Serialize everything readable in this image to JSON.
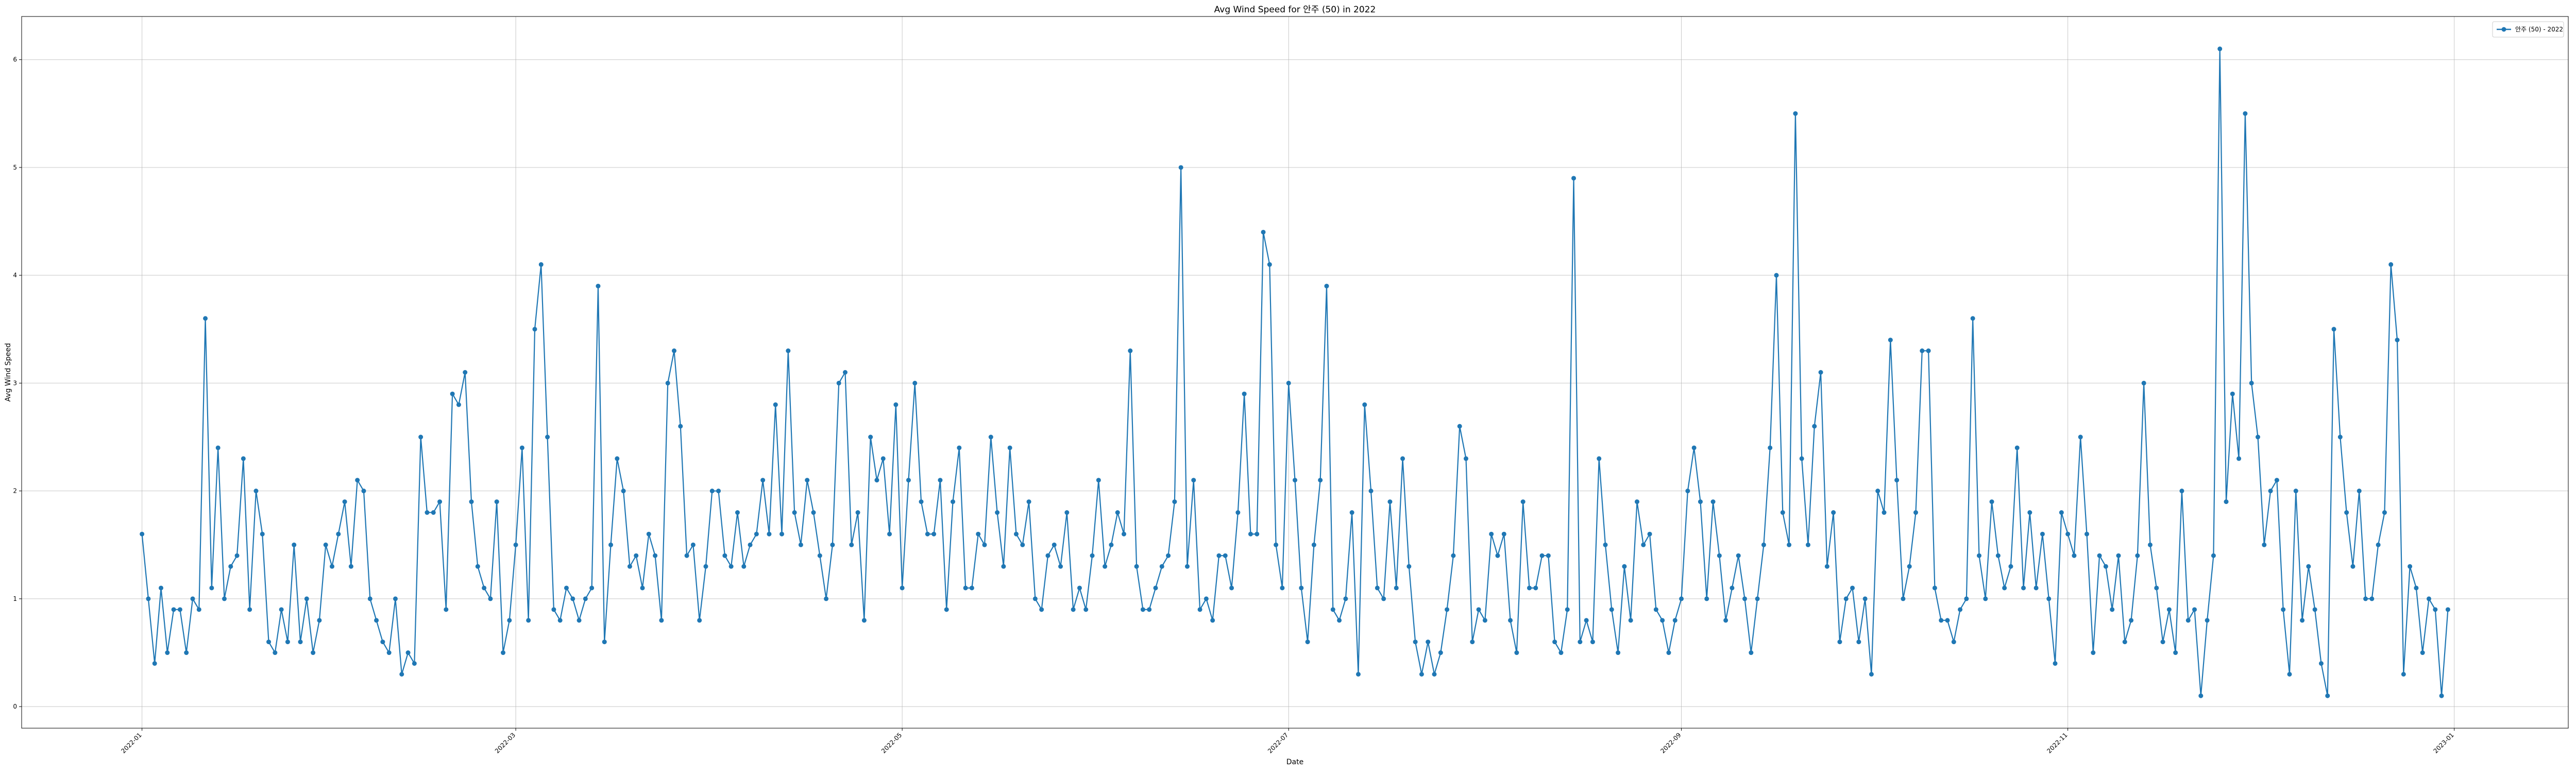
{
  "chart_data": {
    "type": "line",
    "title": "Avg Wind Speed for 안주 (50) in 2022",
    "xlabel": "Date",
    "ylabel": "Avg Wind Speed",
    "xlim": [
      "2021-12-13",
      "2023-01-19"
    ],
    "ylim": [
      -0.2,
      6.4
    ],
    "y_ticks": [
      0,
      1,
      2,
      3,
      4,
      5,
      6
    ],
    "x_ticks": [
      "2022-01-01",
      "2022-03-01",
      "2022-05-01",
      "2022-07-01",
      "2022-09-01",
      "2022-11-01",
      "2023-01-01"
    ],
    "x_tick_labels": [
      "2022-01",
      "2022-03",
      "2022-05",
      "2022-07",
      "2022-09",
      "2022-11",
      "2023-01"
    ],
    "grid": true,
    "legend_position": "top-right",
    "series": [
      {
        "name": "안주 (50) - 2022",
        "color": "#1f77b4",
        "start_date": "2022-01-01",
        "values": [
          1.6,
          1.0,
          0.4,
          1.1,
          0.5,
          0.9,
          0.9,
          0.5,
          1.0,
          0.9,
          3.6,
          1.1,
          2.4,
          1.0,
          1.3,
          1.4,
          2.3,
          0.9,
          2.0,
          1.6,
          0.6,
          0.5,
          0.9,
          0.6,
          1.5,
          0.6,
          1.0,
          0.5,
          0.8,
          1.5,
          1.3,
          1.6,
          1.9,
          1.3,
          2.1,
          2.0,
          1.0,
          0.8,
          0.6,
          0.5,
          1.0,
          0.3,
          0.5,
          0.4,
          2.5,
          1.8,
          1.8,
          1.9,
          0.9,
          2.9,
          2.8,
          3.1,
          1.9,
          1.3,
          1.1,
          1.0,
          1.9,
          0.5,
          0.8,
          1.5,
          2.4,
          0.8,
          3.5,
          4.1,
          2.5,
          0.9,
          0.8,
          1.1,
          1.0,
          0.8,
          1.0,
          1.1,
          3.9,
          0.6,
          1.5,
          2.3,
          2.0,
          1.3,
          1.4,
          1.1,
          1.6,
          1.4,
          0.8,
          3.0,
          3.3,
          2.6,
          1.4,
          1.5,
          0.8,
          1.3,
          2.0,
          2.0,
          1.4,
          1.3,
          1.8,
          1.3,
          1.5,
          1.6,
          2.1,
          1.6,
          2.8,
          1.6,
          3.3,
          1.8,
          1.5,
          2.1,
          1.8,
          1.4,
          1.0,
          1.5,
          3.0,
          3.1,
          1.5,
          1.8,
          0.8,
          2.5,
          2.1,
          2.3,
          1.6,
          2.8,
          1.1,
          2.1,
          3.0,
          1.9,
          1.6,
          1.6,
          2.1,
          0.9,
          1.9,
          2.4,
          1.1,
          1.1,
          1.6,
          1.5,
          2.5,
          1.8,
          1.3,
          2.4,
          1.6,
          1.5,
          1.9,
          1.0,
          0.9,
          1.4,
          1.5,
          1.3,
          1.8,
          0.9,
          1.1,
          0.9,
          1.4,
          2.1,
          1.3,
          1.5,
          1.8,
          1.6,
          3.3,
          1.3,
          0.9,
          0.9,
          1.1,
          1.3,
          1.4,
          1.9,
          5.0,
          1.3,
          2.1,
          0.9,
          1.0,
          0.8,
          1.4,
          1.4,
          1.1,
          1.8,
          2.9,
          1.6,
          1.6,
          4.4,
          4.1,
          1.5,
          1.1,
          3.0,
          2.1,
          1.1,
          0.6,
          1.5,
          2.1,
          3.9,
          0.9,
          0.8,
          1.0,
          1.8,
          0.3,
          2.8,
          2.0,
          1.1,
          1.0,
          1.9,
          1.1,
          2.3,
          1.3,
          0.6,
          0.3,
          0.6,
          0.3,
          0.5,
          0.9,
          1.4,
          2.6,
          2.3,
          0.6,
          0.9,
          0.8,
          1.6,
          1.4,
          1.6,
          0.8,
          0.5,
          1.9,
          1.1,
          1.1,
          1.4,
          1.4,
          0.6,
          0.5,
          0.9,
          4.9,
          0.6,
          0.8,
          0.6,
          2.3,
          1.5,
          0.9,
          0.5,
          1.3,
          0.8,
          1.9,
          1.5,
          1.6,
          0.9,
          0.8,
          0.5,
          0.8,
          1.0,
          2.0,
          2.4,
          1.9,
          1.0,
          1.9,
          1.4,
          0.8,
          1.1,
          1.4,
          1.0,
          0.5,
          1.0,
          1.5,
          2.4,
          4.0,
          1.8,
          1.5,
          5.5,
          2.3,
          1.5,
          2.6,
          3.1,
          1.3,
          1.8,
          0.6,
          1.0,
          1.1,
          0.6,
          1.0,
          0.3,
          2.0,
          1.8,
          3.4,
          2.1,
          1.0,
          1.3,
          1.8,
          3.3,
          3.3,
          1.1,
          0.8,
          0.8,
          0.6,
          0.9,
          1.0,
          3.6,
          1.4,
          1.0,
          1.9,
          1.4,
          1.1,
          1.3,
          2.4,
          1.1,
          1.8,
          1.1,
          1.6,
          1.0,
          0.4,
          1.8,
          1.6,
          1.4,
          2.5,
          1.6,
          0.5,
          1.4,
          1.3,
          0.9,
          1.4,
          0.6,
          0.8,
          1.4,
          3.0,
          1.5,
          1.1,
          0.6,
          0.9,
          0.5,
          2.0,
          0.8,
          0.9,
          0.1,
          0.8,
          1.4,
          6.1,
          1.9,
          2.9,
          2.3,
          5.5,
          3.0,
          2.5,
          1.5,
          2.0,
          2.1,
          0.9,
          0.3,
          2.0,
          0.8,
          1.3,
          0.9,
          0.4,
          0.1,
          3.5,
          2.5,
          1.8,
          1.3,
          2.0,
          1.0,
          1.0,
          1.5,
          1.8,
          4.1,
          3.4,
          0.3,
          1.3,
          1.1,
          0.5,
          1.0,
          0.9,
          0.1,
          0.9
        ]
      }
    ]
  }
}
